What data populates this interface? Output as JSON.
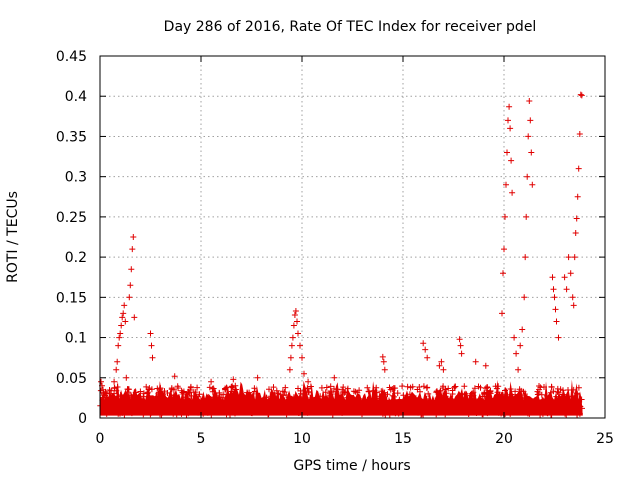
{
  "chart_data": {
    "type": "scatter",
    "title": "Day 286 of 2016, Rate Of TEC Index for receiver pdel",
    "xlabel": "GPS time / hours",
    "ylabel": "ROTI / TECUs",
    "xlim": [
      0,
      25
    ],
    "ylim": [
      0,
      0.45
    ],
    "x_ticks": [
      0,
      5,
      10,
      15,
      20,
      25
    ],
    "y_ticks": [
      0,
      0.05,
      0.1,
      0.15,
      0.2,
      0.25,
      0.3,
      0.35,
      0.4,
      0.45
    ],
    "x_tick_labels": [
      "0",
      "5",
      "10",
      "15",
      "20",
      "25"
    ],
    "y_tick_labels": [
      "0",
      "0.05",
      "0.1",
      "0.15",
      "0.2",
      "0.25",
      "0.3",
      "0.35",
      "0.4",
      "0.45"
    ],
    "grid": true,
    "marker": "plus",
    "color": "#e00000",
    "series": [
      {
        "name": "ROTI",
        "x": [
          0.05,
          0.1,
          0.15,
          0.2,
          0.25,
          0.3,
          0.5,
          0.7,
          0.8,
          0.85,
          0.9,
          0.95,
          1.0,
          1.05,
          1.1,
          1.15,
          1.2,
          1.25,
          1.3,
          1.45,
          1.5,
          1.55,
          1.6,
          1.65,
          1.7,
          2.5,
          2.55,
          2.6,
          3.7,
          5.5,
          6.6,
          6.7,
          7.8,
          9.4,
          9.45,
          9.5,
          9.55,
          9.6,
          9.65,
          9.7,
          9.75,
          9.8,
          9.9,
          10.0,
          10.1,
          10.3,
          11.6,
          14.0,
          14.05,
          14.1,
          16.0,
          16.1,
          16.2,
          16.8,
          16.9,
          17.0,
          17.8,
          17.85,
          17.9,
          18.6,
          19.1,
          19.9,
          19.95,
          20.0,
          20.05,
          20.1,
          20.15,
          20.2,
          20.25,
          20.3,
          20.35,
          20.4,
          20.5,
          20.6,
          20.7,
          20.8,
          20.9,
          21.0,
          21.05,
          21.1,
          21.15,
          21.2,
          21.25,
          21.3,
          21.35,
          21.4,
          22.4,
          22.45,
          22.5,
          22.55,
          22.6,
          22.7,
          23.0,
          23.1,
          23.2,
          23.3,
          23.4,
          23.45,
          23.5,
          23.55,
          23.6,
          23.65,
          23.7,
          23.75,
          23.8,
          23.85
        ],
        "y": [
          0.045,
          0.04,
          0.035,
          0.03,
          0.028,
          0.02,
          0.03,
          0.045,
          0.06,
          0.07,
          0.09,
          0.1,
          0.105,
          0.115,
          0.125,
          0.13,
          0.14,
          0.12,
          0.05,
          0.15,
          0.165,
          0.185,
          0.21,
          0.225,
          0.125,
          0.105,
          0.09,
          0.075,
          0.052,
          0.045,
          0.048,
          0.04,
          0.05,
          0.06,
          0.075,
          0.09,
          0.1,
          0.115,
          0.128,
          0.133,
          0.12,
          0.105,
          0.09,
          0.075,
          0.055,
          0.045,
          0.05,
          0.076,
          0.07,
          0.06,
          0.093,
          0.085,
          0.075,
          0.065,
          0.07,
          0.06,
          0.098,
          0.09,
          0.08,
          0.07,
          0.065,
          0.13,
          0.18,
          0.21,
          0.25,
          0.29,
          0.33,
          0.37,
          0.387,
          0.36,
          0.32,
          0.28,
          0.1,
          0.08,
          0.06,
          0.09,
          0.11,
          0.15,
          0.2,
          0.25,
          0.3,
          0.35,
          0.394,
          0.37,
          0.33,
          0.29,
          0.175,
          0.16,
          0.15,
          0.135,
          0.12,
          0.1,
          0.175,
          0.16,
          0.2,
          0.18,
          0.15,
          0.14,
          0.2,
          0.23,
          0.248,
          0.275,
          0.31,
          0.353,
          0.402,
          0.401
        ]
      }
    ]
  }
}
